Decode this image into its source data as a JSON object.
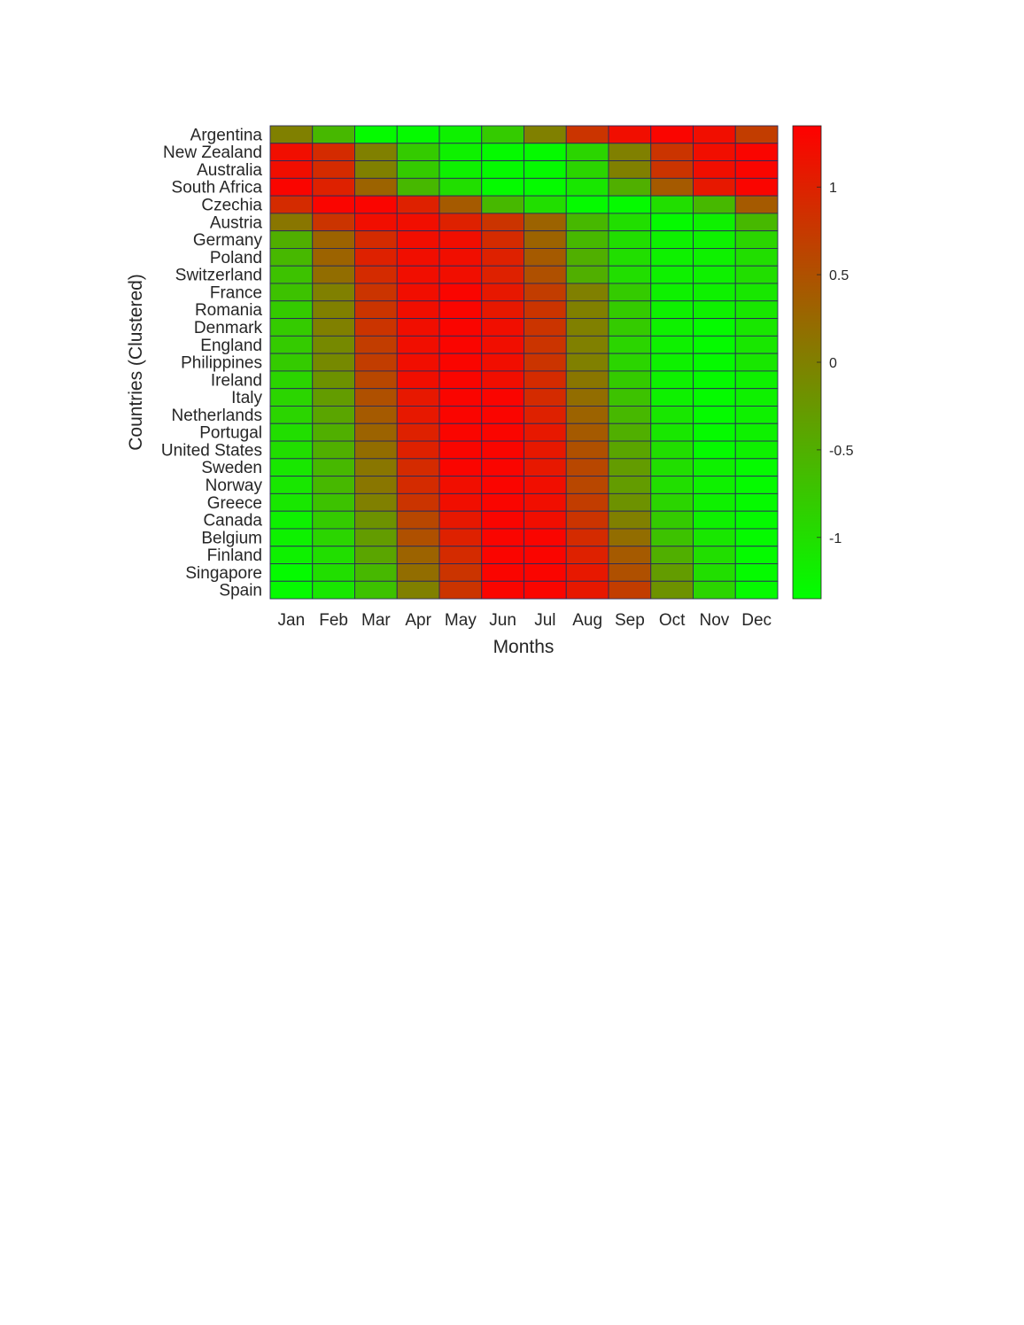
{
  "chart_data": {
    "type": "heatmap",
    "title": "",
    "xlabel": "Months",
    "ylabel": "Countries (Clustered)",
    "x": [
      "Jan",
      "Feb",
      "Mar",
      "Apr",
      "May",
      "Jun",
      "Jul",
      "Aug",
      "Sep",
      "Oct",
      "Nov",
      "Dec"
    ],
    "y": [
      "Argentina",
      "New Zealand",
      "Australia",
      "South Africa",
      "Czechia",
      "Austria",
      "Germany",
      "Poland",
      "Switzerland",
      "France",
      "Romania",
      "Denmark",
      "England",
      "Philippines",
      "Ireland",
      "Italy",
      "Netherlands",
      "Portugal",
      "United States",
      "Sweden",
      "Norway",
      "Greece",
      "Canada",
      "Belgium",
      "Finland",
      "Singapore",
      "Spain"
    ],
    "values": [
      [
        0.0,
        -0.6,
        -1.3,
        -1.3,
        -1.2,
        -0.8,
        0.0,
        0.8,
        1.2,
        1.3,
        1.2,
        0.7
      ],
      [
        1.2,
        0.9,
        0.0,
        -0.8,
        -1.2,
        -1.3,
        -1.3,
        -0.9,
        0.0,
        0.8,
        1.2,
        1.3
      ],
      [
        1.2,
        0.9,
        0.0,
        -0.8,
        -1.2,
        -1.3,
        -1.3,
        -0.9,
        0.0,
        0.8,
        1.2,
        1.3
      ],
      [
        1.3,
        1.0,
        0.3,
        -0.6,
        -1.0,
        -1.3,
        -1.3,
        -1.1,
        -0.5,
        0.4,
        1.1,
        1.3
      ],
      [
        0.9,
        1.3,
        1.3,
        1.0,
        0.4,
        -0.6,
        -1.0,
        -1.3,
        -1.3,
        -1.0,
        -0.6,
        0.4
      ],
      [
        0.1,
        0.8,
        1.2,
        1.2,
        1.0,
        0.8,
        0.3,
        -0.6,
        -1.0,
        -1.3,
        -1.2,
        -0.6
      ],
      [
        -0.5,
        0.3,
        0.9,
        1.2,
        1.2,
        0.9,
        0.3,
        -0.6,
        -1.0,
        -1.2,
        -1.2,
        -0.9
      ],
      [
        -0.6,
        0.3,
        1.0,
        1.2,
        1.2,
        1.0,
        0.4,
        -0.5,
        -1.0,
        -1.2,
        -1.2,
        -1.0
      ],
      [
        -0.7,
        0.2,
        0.9,
        1.2,
        1.2,
        1.0,
        0.5,
        -0.5,
        -1.0,
        -1.2,
        -1.2,
        -1.0
      ],
      [
        -0.7,
        0.0,
        0.8,
        1.2,
        1.3,
        1.1,
        0.7,
        0.0,
        -0.8,
        -1.2,
        -1.2,
        -1.1
      ],
      [
        -0.8,
        0.0,
        0.8,
        1.2,
        1.3,
        1.1,
        0.8,
        0.0,
        -0.8,
        -1.2,
        -1.2,
        -1.1
      ],
      [
        -0.8,
        0.0,
        0.8,
        1.2,
        1.3,
        1.2,
        0.8,
        0.0,
        -0.8,
        -1.2,
        -1.3,
        -1.1
      ],
      [
        -0.8,
        -0.1,
        0.7,
        1.2,
        1.3,
        1.2,
        0.8,
        0.0,
        -0.9,
        -1.2,
        -1.3,
        -1.1
      ],
      [
        -0.8,
        -0.1,
        0.7,
        1.2,
        1.3,
        1.2,
        0.8,
        0.0,
        -0.9,
        -1.2,
        -1.3,
        -1.1
      ],
      [
        -0.9,
        -0.2,
        0.6,
        1.2,
        1.3,
        1.2,
        0.9,
        0.1,
        -0.8,
        -1.2,
        -1.3,
        -1.2
      ],
      [
        -0.9,
        -0.3,
        0.5,
        1.1,
        1.3,
        1.3,
        0.9,
        0.2,
        -0.7,
        -1.2,
        -1.3,
        -1.2
      ],
      [
        -0.9,
        -0.4,
        0.4,
        1.1,
        1.3,
        1.3,
        1.0,
        0.3,
        -0.6,
        -1.1,
        -1.3,
        -1.2
      ],
      [
        -1.0,
        -0.5,
        0.3,
        1.0,
        1.3,
        1.3,
        1.1,
        0.4,
        -0.5,
        -1.1,
        -1.3,
        -1.2
      ],
      [
        -1.0,
        -0.5,
        0.2,
        1.0,
        1.3,
        1.3,
        1.1,
        0.5,
        -0.4,
        -1.0,
        -1.3,
        -1.2
      ],
      [
        -1.1,
        -0.6,
        0.1,
        0.9,
        1.3,
        1.3,
        1.1,
        0.6,
        -0.3,
        -1.0,
        -1.2,
        -1.3
      ],
      [
        -1.1,
        -0.6,
        0.1,
        0.9,
        1.2,
        1.3,
        1.2,
        0.6,
        -0.3,
        -1.0,
        -1.2,
        -1.3
      ],
      [
        -1.1,
        -0.7,
        0.0,
        0.8,
        1.2,
        1.3,
        1.2,
        0.7,
        -0.2,
        -0.9,
        -1.2,
        -1.3
      ],
      [
        -1.2,
        -0.8,
        -0.2,
        0.6,
        1.1,
        1.3,
        1.2,
        0.8,
        0.0,
        -0.8,
        -1.2,
        -1.3
      ],
      [
        -1.2,
        -0.9,
        -0.3,
        0.5,
        1.0,
        1.3,
        1.3,
        0.9,
        0.2,
        -0.7,
        -1.1,
        -1.3
      ],
      [
        -1.2,
        -1.0,
        -0.4,
        0.3,
        0.9,
        1.3,
        1.3,
        1.0,
        0.4,
        -0.5,
        -1.0,
        -1.3
      ],
      [
        -1.3,
        -1.0,
        -0.6,
        0.2,
        0.8,
        1.3,
        1.3,
        1.1,
        0.5,
        -0.3,
        -1.0,
        -1.3
      ],
      [
        -1.3,
        -1.1,
        -0.7,
        0.0,
        0.8,
        1.3,
        1.3,
        1.1,
        0.7,
        -0.2,
        -0.9,
        -1.3
      ]
    ],
    "colorbar": {
      "min": -1.35,
      "max": 1.35,
      "ticks": [
        1,
        0.5,
        0,
        -0.5,
        -1
      ],
      "tick_labels": [
        "1",
        "0.5",
        "0",
        "-0.5",
        "-1"
      ],
      "low_color": "#00ff00",
      "high_color": "#ff0000"
    },
    "grid": true,
    "grid_color": "#2b2b5a"
  }
}
